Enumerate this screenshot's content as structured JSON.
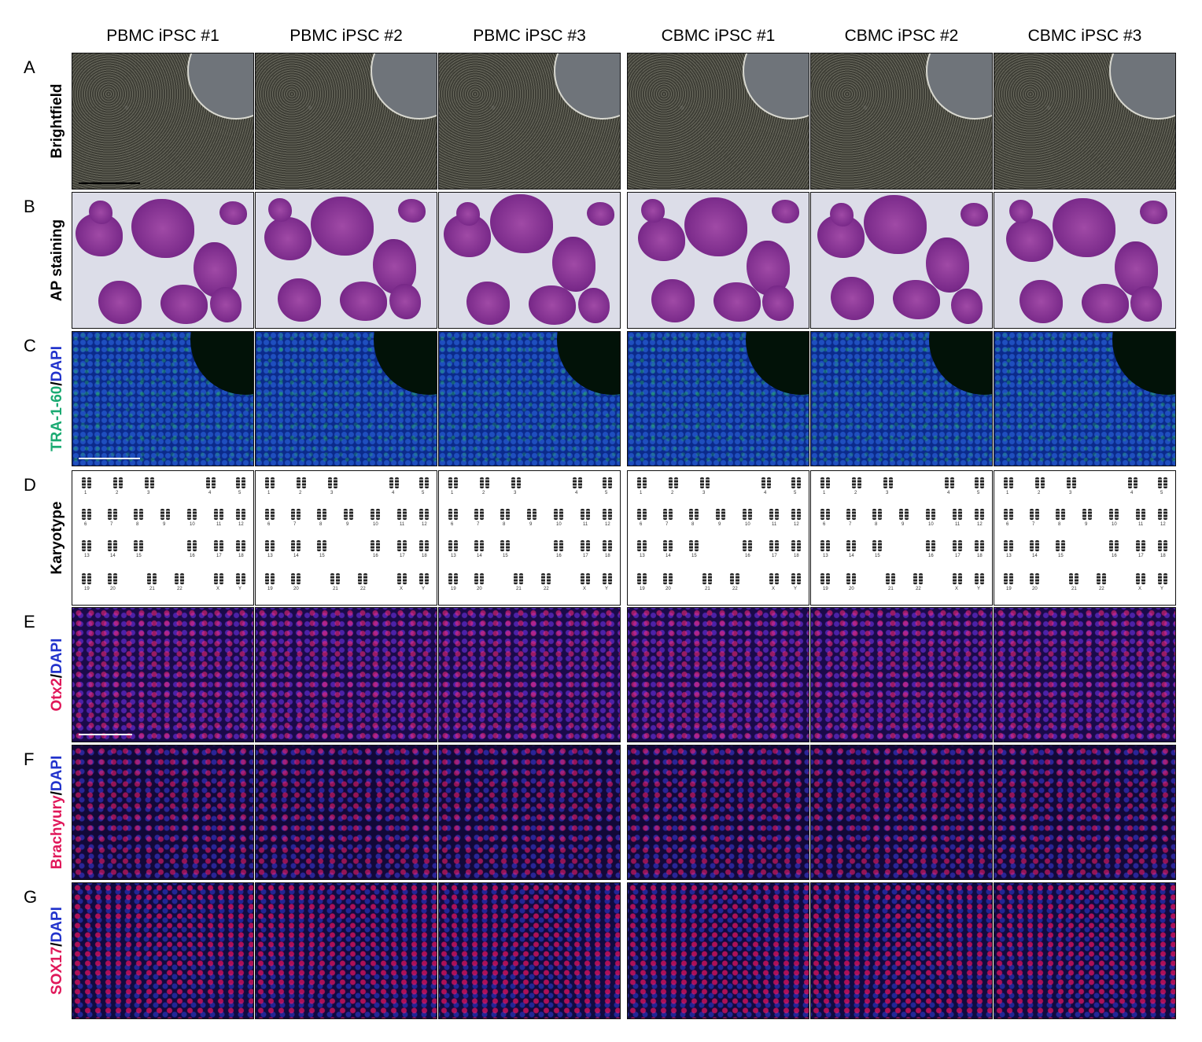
{
  "columns": [
    "PBMC iPSC #1",
    "PBMC iPSC #2",
    "PBMC iPSC #3",
    "CBMC iPSC #1",
    "CBMC iPSC #2",
    "CBMC iPSC #3"
  ],
  "rows": [
    {
      "letter": "A",
      "label": "Brightfield"
    },
    {
      "letter": "B",
      "label": "AP staining"
    },
    {
      "letter": "C",
      "label_parts": [
        {
          "text": "TRA-1-60",
          "color": "#1aaa72"
        },
        {
          "text": "/",
          "color": "#000000"
        },
        {
          "text": "DAPI",
          "color": "#2233cc"
        }
      ]
    },
    {
      "letter": "D",
      "label": "Karyotype"
    },
    {
      "letter": "E",
      "label_parts": [
        {
          "text": "Otx2",
          "color": "#e0185a"
        },
        {
          "text": "/",
          "color": "#000000"
        },
        {
          "text": "DAPI",
          "color": "#2233cc"
        }
      ]
    },
    {
      "letter": "F",
      "label_parts": [
        {
          "text": "Brachyury",
          "color": "#e0185a"
        },
        {
          "text": "/",
          "color": "#000000"
        },
        {
          "text": "DAPI",
          "color": "#2233cc"
        }
      ]
    },
    {
      "letter": "G",
      "label_parts": [
        {
          "text": "SOX17",
          "color": "#e0185a"
        },
        {
          "text": "/",
          "color": "#000000"
        },
        {
          "text": "DAPI",
          "color": "#2233cc"
        }
      ]
    }
  ],
  "karyotype_numbers": [
    "1",
    "2",
    "3",
    "4",
    "5",
    "6",
    "7",
    "8",
    "9",
    "10",
    "11",
    "12",
    "13",
    "14",
    "15",
    "16",
    "17",
    "18",
    "19",
    "20",
    "21",
    "22",
    "X",
    "Y"
  ]
}
